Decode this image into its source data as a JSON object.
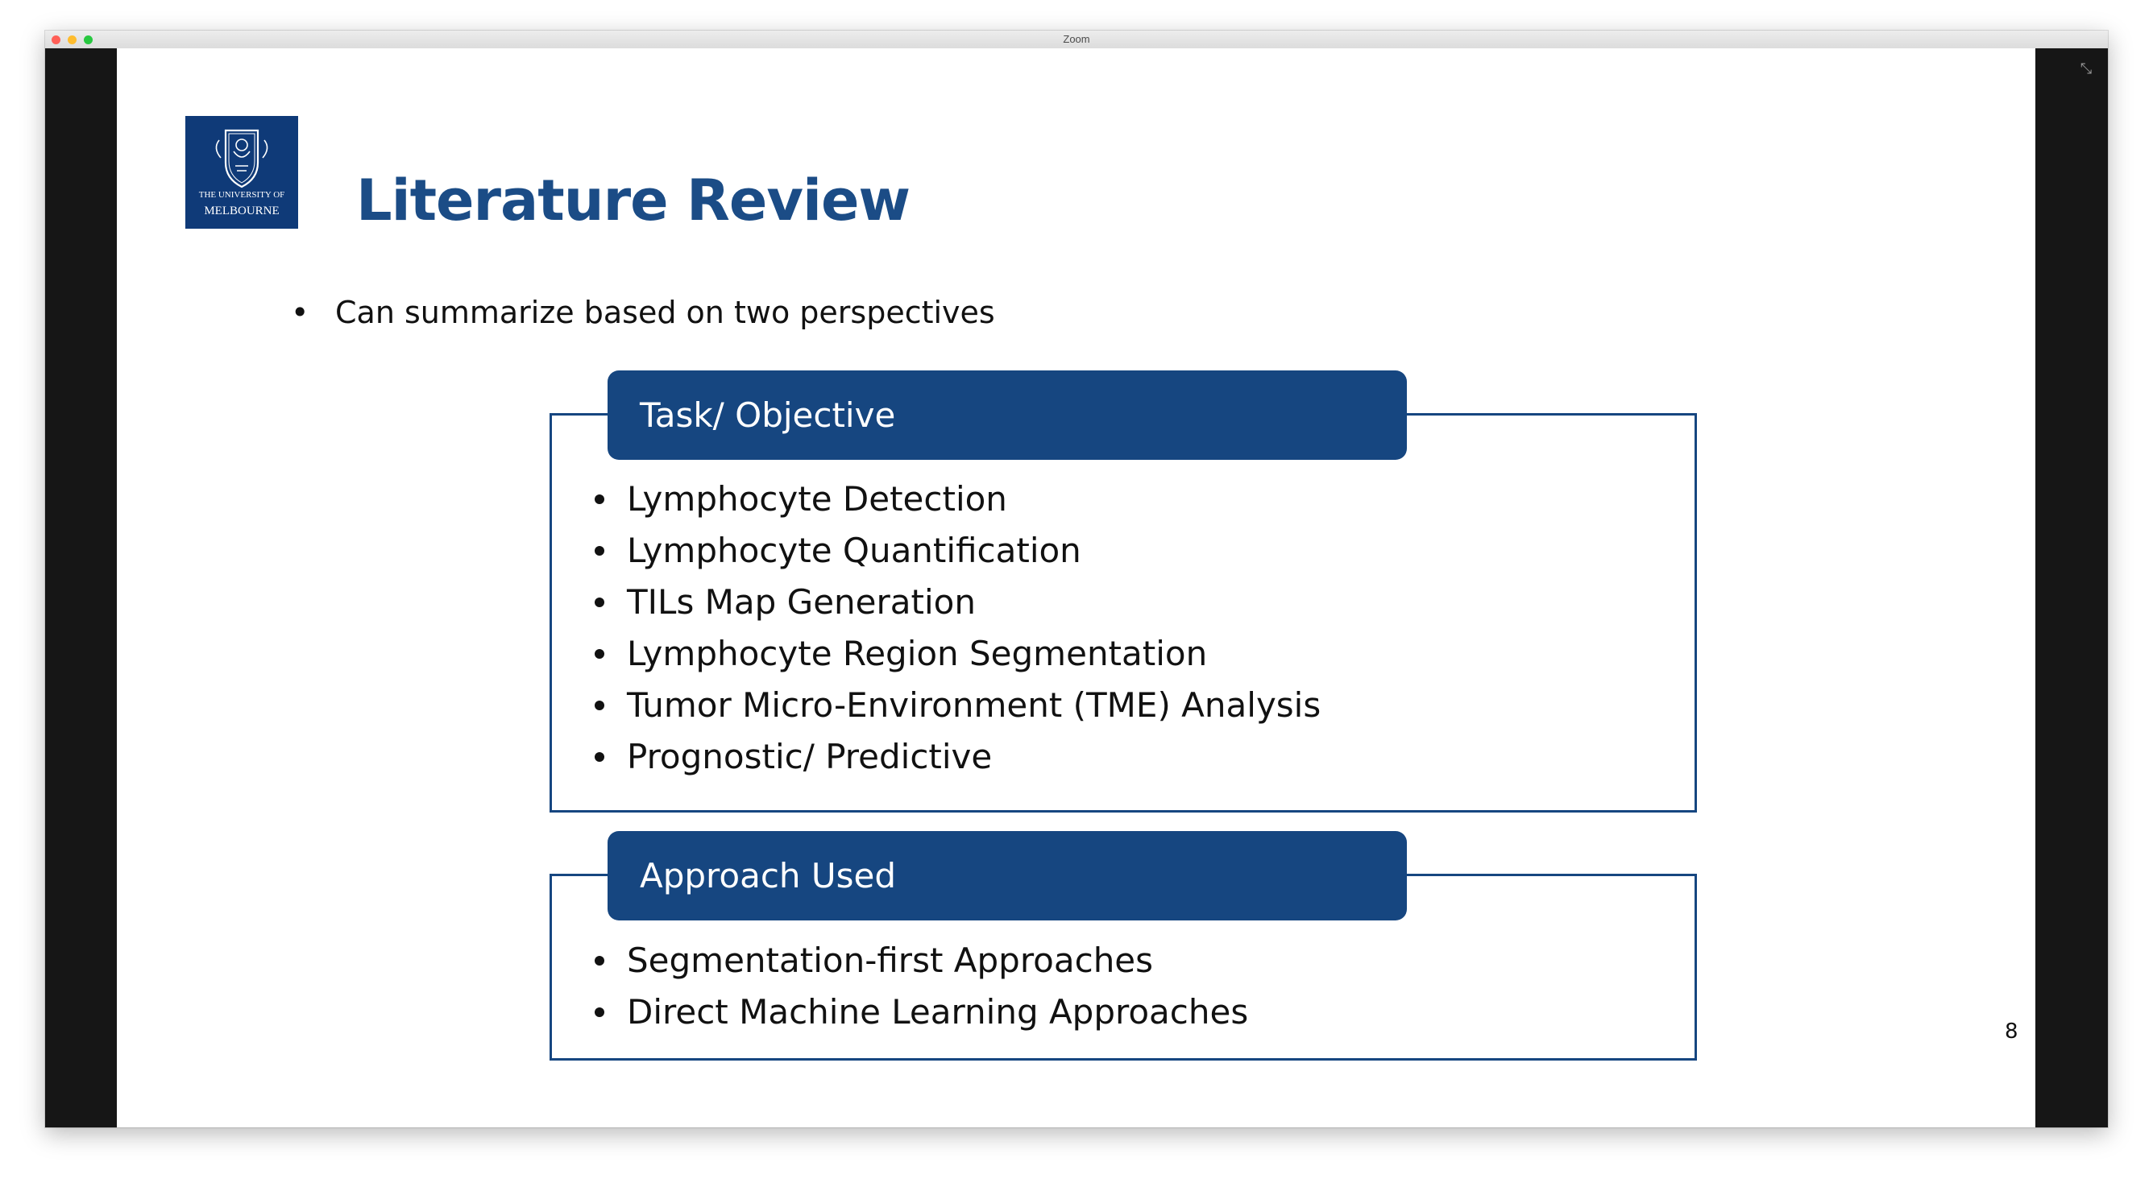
{
  "window": {
    "title": "Zoom"
  },
  "icons": {
    "fullscreen": "exit-fullscreen-icon",
    "logo": "university-crest-icon"
  },
  "slide": {
    "logo_line1": "THE UNIVERSITY OF",
    "logo_line2": "MELBOURNE",
    "title": "Literature Review",
    "intro": "Can summarize based on two perspectives",
    "page_number": "8",
    "sections": [
      {
        "header": "Task/ Objective",
        "items": [
          "Lymphocyte Detection",
          "Lymphocyte Quantification",
          "TILs Map Generation",
          "Lymphocyte Region Segmentation",
          "Tumor Micro-Environment (TME) Analysis",
          "Prognostic/ Predictive"
        ]
      },
      {
        "header": "Approach Used",
        "items": [
          "Segmentation-first Approaches",
          "Direct Machine Learning Approaches"
        ]
      }
    ]
  },
  "colors": {
    "brand_blue": "#164680",
    "title_blue": "#1b4c86",
    "logo_blue": "#0f3a78"
  }
}
